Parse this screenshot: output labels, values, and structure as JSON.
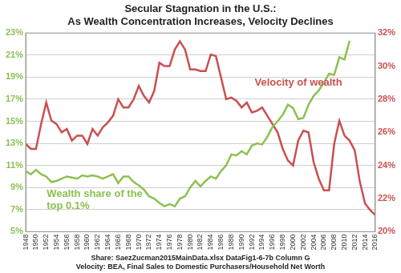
{
  "chart_data": {
    "type": "line",
    "title": [
      "Secular Stagnation in the U.S.:",
      "As Wealth Concentration Increases, Velocity Declines"
    ],
    "source": [
      "Share: SaezZucman2015MainData.xlsx DataFig1-6-7b Column G",
      "Velocity: BEA, Final Sales to Domestic Purchasers/Household Net Worth"
    ],
    "x": [
      1948,
      1949,
      1950,
      1951,
      1952,
      1953,
      1954,
      1955,
      1956,
      1957,
      1958,
      1959,
      1960,
      1961,
      1962,
      1963,
      1964,
      1965,
      1966,
      1967,
      1968,
      1969,
      1970,
      1971,
      1972,
      1973,
      1974,
      1975,
      1976,
      1977,
      1978,
      1979,
      1980,
      1981,
      1982,
      1983,
      1984,
      1985,
      1986,
      1987,
      1988,
      1989,
      1990,
      1991,
      1992,
      1993,
      1994,
      1995,
      1996,
      1997,
      1998,
      1999,
      2000,
      2001,
      2002,
      2003,
      2004,
      2005,
      2006,
      2007,
      2008,
      2009,
      2010,
      2011,
      2012,
      2013,
      2014,
      2015,
      2016
    ],
    "series": [
      {
        "name": "Wealth share of the top 0.1%",
        "color": "#8cc152",
        "axis": "y",
        "values": [
          10.5,
          10.2,
          10.6,
          10.2,
          10.0,
          9.5,
          9.6,
          9.8,
          10.0,
          9.9,
          9.8,
          10.1,
          10.0,
          10.1,
          10.0,
          9.8,
          10.0,
          10.2,
          9.4,
          10.0,
          10.0,
          9.5,
          9.2,
          8.8,
          8.2,
          8.0,
          7.6,
          7.3,
          7.5,
          7.3,
          8.0,
          8.2,
          9.0,
          9.6,
          9.1,
          9.6,
          10.0,
          9.8,
          10.5,
          11.0,
          12.0,
          11.9,
          12.3,
          12.0,
          12.8,
          13.0,
          12.9,
          13.6,
          14.5,
          15.0,
          15.6,
          16.5,
          16.2,
          15.2,
          15.3,
          16.5,
          17.3,
          17.8,
          18.5,
          19.3,
          19.2,
          20.8,
          20.6,
          22.3,
          null,
          null,
          null,
          null,
          null
        ]
      },
      {
        "name": "Velocity of wealth",
        "color": "#c9504f",
        "axis": "y2",
        "values": [
          25.3,
          25.0,
          25.0,
          26.5,
          27.8,
          26.7,
          26.5,
          26.0,
          26.2,
          25.5,
          25.8,
          25.8,
          25.3,
          26.2,
          25.8,
          26.3,
          26.6,
          27.0,
          28.0,
          27.5,
          27.5,
          28.0,
          28.8,
          28.2,
          27.8,
          28.5,
          30.2,
          30.0,
          30.0,
          31.0,
          31.5,
          31.0,
          29.8,
          29.8,
          29.7,
          29.7,
          30.7,
          30.6,
          29.3,
          28.0,
          28.1,
          27.9,
          27.5,
          27.8,
          27.2,
          27.3,
          27.5,
          27.0,
          26.5,
          26.0,
          25.0,
          24.3,
          24.0,
          25.5,
          26.1,
          26.0,
          24.2,
          23.2,
          22.5,
          22.5,
          25.3,
          26.7,
          25.8,
          25.5,
          24.9,
          23.0,
          21.7,
          21.3,
          21.0
        ]
      }
    ],
    "annotations": [
      {
        "text": "Velocity of wealth",
        "color": "#c9504f"
      },
      {
        "text": "Wealth share of the top 0.1%",
        "color": "#8cc152"
      }
    ],
    "xlim": [
      1948,
      2016
    ],
    "xticks": [
      1948,
      1950,
      1952,
      1954,
      1956,
      1958,
      1960,
      1962,
      1964,
      1966,
      1968,
      1970,
      1972,
      1974,
      1976,
      1978,
      1980,
      1982,
      1984,
      1986,
      1988,
      1990,
      1992,
      1994,
      1996,
      1998,
      2000,
      2002,
      2004,
      2006,
      2008,
      2010,
      2012,
      2014,
      2016
    ],
    "ylim": [
      5,
      23
    ],
    "yticks": [
      {
        "value": 5,
        "label": "5%"
      },
      {
        "value": 7,
        "label": "7%"
      },
      {
        "value": 9,
        "label": "9%"
      },
      {
        "value": 11,
        "label": "11%"
      },
      {
        "value": 13,
        "label": "13%"
      },
      {
        "value": 15,
        "label": "15%"
      },
      {
        "value": 17,
        "label": "17%"
      },
      {
        "value": 19,
        "label": "19%"
      },
      {
        "value": 21,
        "label": "21%"
      },
      {
        "value": 23,
        "label": "23%"
      }
    ],
    "y2lim": [
      20,
      32
    ],
    "y2ticks": [
      {
        "value": 20,
        "label": "20%"
      },
      {
        "value": 22,
        "label": "22%"
      },
      {
        "value": 24,
        "label": "24%"
      },
      {
        "value": 26,
        "label": "26%"
      },
      {
        "value": 28,
        "label": "28%"
      },
      {
        "value": 30,
        "label": "30%"
      },
      {
        "value": 32,
        "label": "32%"
      }
    ],
    "grid": true
  }
}
